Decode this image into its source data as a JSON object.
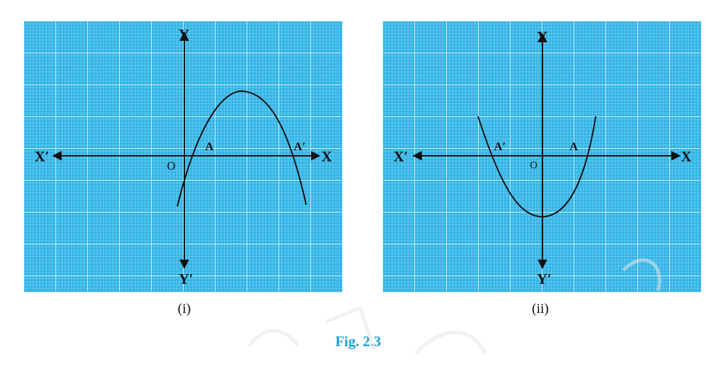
{
  "figure_caption": "Fig. 2.3",
  "colors": {
    "grid_background": "#32b4e6",
    "grid_fine": "#a8e2f7",
    "grid_major": "#e4f7fd",
    "ink": "#111111",
    "caption": "#1a9fd4"
  },
  "panels": [
    {
      "caption": "(i)",
      "axis_labels": {
        "x_pos": "X",
        "x_neg": "X′",
        "y_pos": "Y",
        "y_neg": "Y′",
        "origin": "O"
      },
      "point_labels": [
        "A",
        "A′"
      ],
      "curve": "downward parabola"
    },
    {
      "caption": "(ii)",
      "axis_labels": {
        "x_pos": "X",
        "x_neg": "X′",
        "y_pos": "Y",
        "y_neg": "Y′",
        "origin": "O"
      },
      "point_labels": [
        "A′",
        "A"
      ],
      "curve": "upward parabola"
    }
  ]
}
